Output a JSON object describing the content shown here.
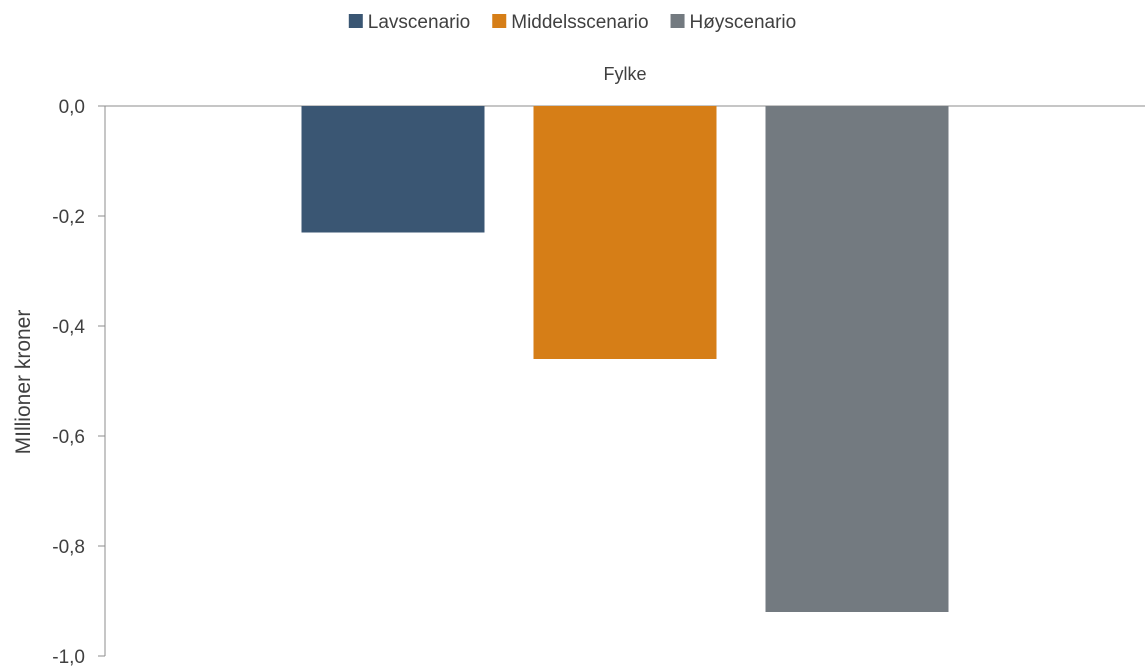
{
  "chart_data": {
    "type": "bar",
    "title": "",
    "xlabel": "",
    "ylabel": "MIllioner kroner",
    "categories": [
      "Fylke"
    ],
    "series": [
      {
        "name": "Lavscenario",
        "values": [
          -0.23
        ],
        "color": "#3A5673"
      },
      {
        "name": "Middelsscenario",
        "values": [
          -0.46
        ],
        "color": "#D67E17"
      },
      {
        "name": "Høyscenario",
        "values": [
          -0.92
        ],
        "color": "#737A80"
      }
    ],
    "ylim": [
      -1.0,
      0.0
    ],
    "yticks": [
      "0,0",
      "-0,2",
      "-0,4",
      "-0,6",
      "-0,8",
      "-1,0"
    ],
    "legend_position": "top",
    "grid": false
  }
}
